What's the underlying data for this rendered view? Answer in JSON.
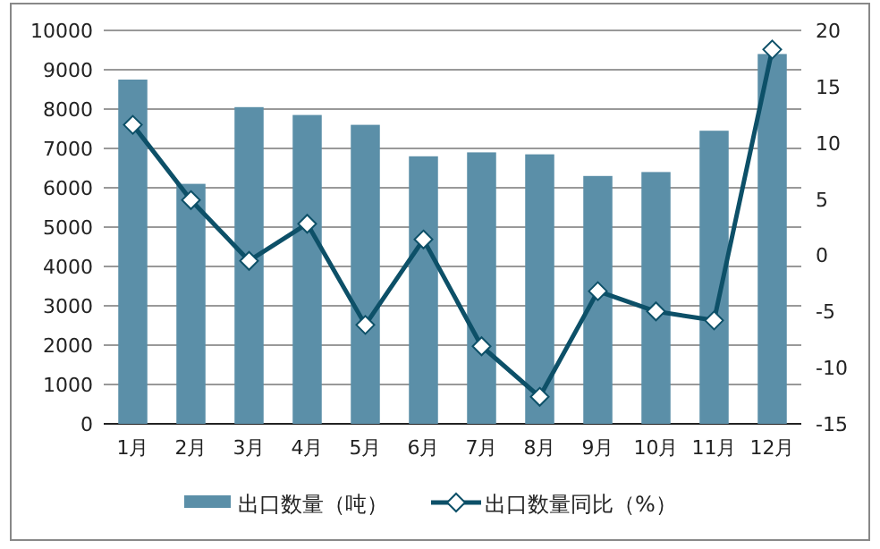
{
  "chart_data": {
    "type": "bar",
    "categories": [
      "1月",
      "2月",
      "3月",
      "4月",
      "5月",
      "6月",
      "7月",
      "8月",
      "9月",
      "10月",
      "11月",
      "12月"
    ],
    "series": [
      {
        "name": "出口数量（吨）",
        "color": "#5b8fa8",
        "values": [
          8750,
          6100,
          8050,
          7850,
          7600,
          6800,
          6900,
          6850,
          6300,
          6400,
          7450,
          9400
        ]
      },
      {
        "name": "出口数量同比（%）",
        "type": "line",
        "axis": "y2",
        "color": "#0d5068",
        "marker": "diamond",
        "values": [
          11.6,
          4.9,
          -0.5,
          2.8,
          -6.2,
          1.4,
          -8.1,
          -12.6,
          -3.2,
          -5.0,
          -5.8,
          18.3
        ]
      }
    ],
    "ylim": [
      0,
      10000
    ],
    "yticks": [
      0,
      1000,
      2000,
      3000,
      4000,
      5000,
      6000,
      7000,
      8000,
      9000,
      10000
    ],
    "y2lim": [
      -15,
      20
    ],
    "y2ticks": [
      -15,
      -10,
      -5,
      0,
      5,
      10,
      15,
      20
    ],
    "grid": "y",
    "legend": "bottom"
  }
}
